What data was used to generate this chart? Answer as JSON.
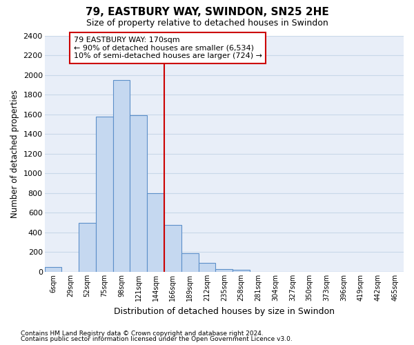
{
  "title1": "79, EASTBURY WAY, SWINDON, SN25 2HE",
  "title2": "Size of property relative to detached houses in Swindon",
  "xlabel": "Distribution of detached houses by size in Swindon",
  "ylabel": "Number of detached properties",
  "categories": [
    "6sqm",
    "29sqm",
    "52sqm",
    "75sqm",
    "98sqm",
    "121sqm",
    "144sqm",
    "166sqm",
    "189sqm",
    "212sqm",
    "235sqm",
    "258sqm",
    "281sqm",
    "304sqm",
    "327sqm",
    "350sqm",
    "373sqm",
    "396sqm",
    "419sqm",
    "442sqm",
    "465sqm"
  ],
  "values": [
    50,
    0,
    500,
    1580,
    1950,
    1590,
    800,
    480,
    190,
    90,
    30,
    20,
    0,
    0,
    0,
    0,
    0,
    0,
    0,
    0,
    0
  ],
  "bar_color": "#c5d8f0",
  "bar_edge_color": "#5b8fc9",
  "vline_index": 7,
  "vline_color": "#cc0000",
  "annotation_text": "79 EASTBURY WAY: 170sqm\n← 90% of detached houses are smaller (6,534)\n10% of semi-detached houses are larger (724) →",
  "ann_box_fc": "#ffffff",
  "ann_box_ec": "#cc0000",
  "ylim_max": 2400,
  "ytick_step": 200,
  "grid_color": "#c8d8e8",
  "plot_bg": "#e8eef8",
  "fig_bg": "#ffffff",
  "footer1": "Contains HM Land Registry data © Crown copyright and database right 2024.",
  "footer2": "Contains public sector information licensed under the Open Government Licence v3.0."
}
